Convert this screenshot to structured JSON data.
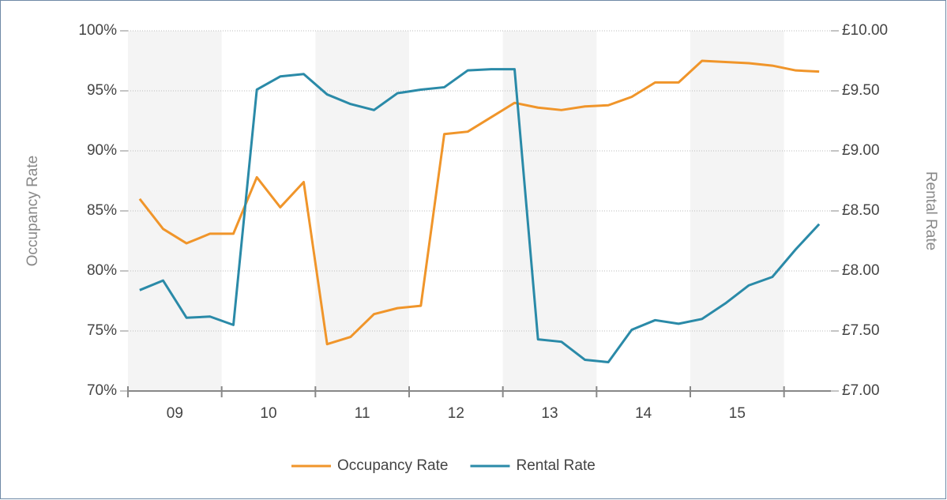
{
  "chart_data": {
    "type": "line",
    "y_label": "Occupancy Rate",
    "y2_label": "Rental Rate",
    "x": [
      9.125,
      9.375,
      9.625,
      9.875,
      10.125,
      10.375,
      10.625,
      10.875,
      11.125,
      11.375,
      11.625,
      11.875,
      12.125,
      12.375,
      12.625,
      12.875,
      13.125,
      13.375,
      13.625,
      13.875,
      14.125,
      14.375,
      14.625,
      14.875,
      15.125,
      15.375,
      15.625,
      15.875,
      16.125,
      16.375
    ],
    "series": [
      {
        "name": "Occupancy Rate",
        "color": "#f0952a",
        "values": [
          86.0,
          83.5,
          82.3,
          83.1,
          83.1,
          87.8,
          85.3,
          87.4,
          73.9,
          74.5,
          76.4,
          76.9,
          77.1,
          91.4,
          91.6,
          92.8,
          94.0,
          93.6,
          93.4,
          93.7,
          93.8,
          94.5,
          95.7,
          95.7,
          97.5,
          97.4,
          97.3,
          97.1,
          96.7,
          96.6
        ]
      },
      {
        "name": "Rental Rate",
        "color": "#2a8aa8",
        "axis": "y2",
        "values": [
          7.84,
          7.92,
          7.61,
          7.62,
          7.55,
          9.51,
          9.62,
          9.64,
          9.47,
          9.39,
          9.34,
          9.48,
          9.51,
          9.53,
          9.67,
          9.68,
          9.68,
          7.43,
          7.41,
          7.26,
          7.24,
          7.51,
          7.59,
          7.56,
          7.6,
          7.73,
          7.88,
          7.95,
          8.18,
          8.39
        ]
      }
    ],
    "xlim": [
      9,
      16.5
    ],
    "xticks": [
      9,
      10,
      11,
      12,
      13,
      14,
      15,
      16
    ],
    "xtick_labels": [
      {
        "value": 9.5,
        "label": "09"
      },
      {
        "value": 10.5,
        "label": "10"
      },
      {
        "value": 11.5,
        "label": "11"
      },
      {
        "value": 12.5,
        "label": "12"
      },
      {
        "value": 13.5,
        "label": "13"
      },
      {
        "value": 14.5,
        "label": "14"
      },
      {
        "value": 15.5,
        "label": "15"
      }
    ],
    "ylim": [
      70,
      100
    ],
    "yticks": [
      {
        "value": 70,
        "label": "70%"
      },
      {
        "value": 75,
        "label": "75%"
      },
      {
        "value": 80,
        "label": "80%"
      },
      {
        "value": 85,
        "label": "85%"
      },
      {
        "value": 90,
        "label": "90%"
      },
      {
        "value": 95,
        "label": "95%"
      },
      {
        "value": 100,
        "label": "100%"
      }
    ],
    "y2lim": [
      7,
      10
    ],
    "y2ticks": [
      {
        "value": 7,
        "label": "£7.00"
      },
      {
        "value": 7.5,
        "label": "£7.50"
      },
      {
        "value": 8,
        "label": "£8.00"
      },
      {
        "value": 8.5,
        "label": "£8.50"
      },
      {
        "value": 9,
        "label": "£9.00"
      },
      {
        "value": 9.5,
        "label": "£9.50"
      },
      {
        "value": 10,
        "label": "£10.00"
      }
    ],
    "grid": true,
    "alternating_bands": true,
    "legend": "bottom"
  }
}
